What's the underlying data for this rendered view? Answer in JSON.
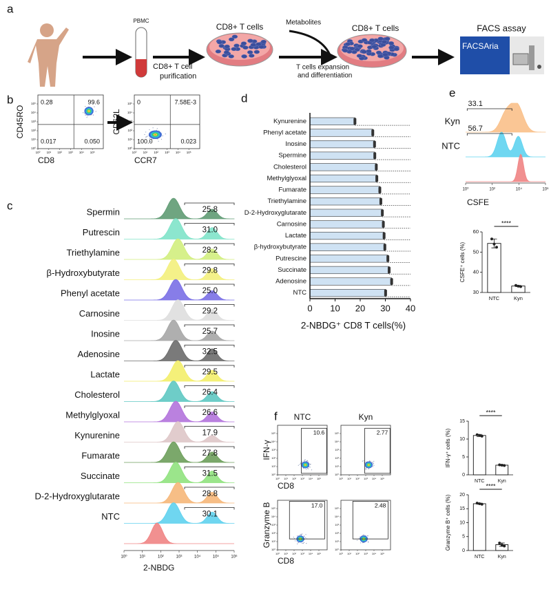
{
  "panel_labels": [
    "a",
    "b",
    "c",
    "d",
    "e",
    "f"
  ],
  "workflow": {
    "pbmc": "PBMC",
    "purification": [
      "CD8+ T cell",
      "purification"
    ],
    "cells_before": "CD8+ T cells",
    "metabolites": "Metabolites",
    "expansion": [
      "T cells expansion",
      "and differentiation"
    ],
    "cells_after": "CD8+ T cells",
    "assay": "FACS assay",
    "machine": "FACSAria"
  },
  "chart_data": [
    {
      "type": "flow-quadrant",
      "xlabel": "CD8",
      "ylabel": "CD45RO",
      "values": [
        0.28,
        99.6,
        0.017,
        0.05
      ],
      "value_labels": [
        "0.28",
        "99.6",
        "0.017",
        "0.050"
      ],
      "log": true,
      "xlim": [
        1,
        1000000
      ],
      "ylim": [
        1,
        1000000
      ],
      "xticks": [
        {
          "value": 1,
          "label": "10⁰"
        },
        {
          "value": 10,
          "label": "10¹"
        },
        {
          "value": 100,
          "label": "10²"
        },
        {
          "value": 1000,
          "label": "10³"
        },
        {
          "value": 10000,
          "label": "10⁴"
        },
        {
          "value": 100000,
          "label": "10⁵"
        }
      ],
      "yticks": [
        {
          "value": 1,
          "label": "10⁰"
        },
        {
          "value": 10,
          "label": "10¹"
        },
        {
          "value": 100,
          "label": "10²"
        },
        {
          "value": 1000,
          "label": "10³"
        },
        {
          "value": 10000,
          "label": "10⁴"
        },
        {
          "value": 100000,
          "label": "10⁵"
        }
      ]
    },
    {
      "type": "flow-quadrant",
      "xlabel": "CCR7",
      "ylabel": "CD62L",
      "values": [
        0,
        0.00758,
        100,
        0.023
      ],
      "value_labels": [
        "0",
        "7.58E-3",
        "100.0",
        "0.023"
      ],
      "log": true,
      "xlim": [
        1,
        1000000
      ],
      "ylim": [
        1,
        1000000
      ],
      "xticks": [
        {
          "value": 1,
          "label": "10⁰"
        },
        {
          "value": 10,
          "label": "10¹"
        },
        {
          "value": 100,
          "label": "10²"
        },
        {
          "value": 1000,
          "label": "10³"
        },
        {
          "value": 10000,
          "label": "10⁴"
        },
        {
          "value": 100000,
          "label": "10⁵"
        }
      ],
      "yticks": [
        {
          "value": 1,
          "label": "10⁰"
        },
        {
          "value": 10,
          "label": "10¹"
        },
        {
          "value": 100,
          "label": "10²"
        },
        {
          "value": 1000,
          "label": "10³"
        },
        {
          "value": 10000,
          "label": "10⁴"
        },
        {
          "value": 100000,
          "label": "10⁵"
        }
      ]
    },
    {
      "type": "ridgeline",
      "xlabel": "2-NBDG",
      "log": true,
      "xlim": [
        1,
        1000000
      ],
      "categories": [
        "Spermin",
        "Putrescin",
        "Triethylamine",
        "β-Hydroxybutyrate",
        "Phenyl acetate",
        "Carnosine",
        "Inosine",
        "Adenosine",
        "Lactate",
        "Cholesterol",
        "Methylglyoxal",
        "Kynurenine",
        "Fumarate",
        "Succinate",
        "D-2-Hydroxyglutarate",
        "NTC",
        null
      ],
      "values": [
        25.8,
        31,
        28.2,
        29.8,
        25,
        29.2,
        25.7,
        32.5,
        29.5,
        26.4,
        26.6,
        17.9,
        27.8,
        31.5,
        28.8,
        30.1,
        null
      ],
      "value_labels": [
        "25.8",
        "31.0",
        "28.2",
        "29.8",
        "25.0",
        "29.2",
        "25.7",
        "32.5",
        "29.5",
        "26.4",
        "26.6",
        "17.9",
        "27.8",
        "31.5",
        "28.8",
        "30.1",
        null
      ],
      "colors": [
        "#5f9b73",
        "#7fe3c9",
        "#d2ee7e",
        "#f3f07c",
        "#7a6fe6",
        "#dedede",
        "#a6a6a6",
        "#6b6b6b",
        "#f3ee6a",
        "#5ec8c2",
        "#b373dc",
        "#dec6c8",
        "#6d9f5b",
        "#90e27e",
        "#f6b779",
        "#5fd1ee",
        "#f08484"
      ],
      "xticks": [
        {
          "value": 1,
          "label": "10⁰"
        },
        {
          "value": 10,
          "label": "10¹"
        },
        {
          "value": 100,
          "label": "10²"
        },
        {
          "value": 1000,
          "label": "10³"
        },
        {
          "value": 10000,
          "label": "10⁴"
        },
        {
          "value": 100000,
          "label": "10⁵"
        },
        {
          "value": 1000000,
          "label": "10⁶"
        }
      ]
    },
    {
      "type": "hbar",
      "xlabel": "2-NBDG⁺ CD8  T cells(%)",
      "color": "#cfe2f3",
      "categories": [
        "Kynurenine",
        "Phenyl acetate",
        "Inosine",
        "Spermine",
        "Cholesterol",
        "Methylglyoxal",
        "Fumarate",
        "Triethylamine",
        "D-2-Hydroxyglutarate",
        "Carnosine",
        "Lactate",
        "β-hydroxybutyrate",
        "Putrescine",
        "Succinate",
        "Adenosine",
        "NTC"
      ],
      "values": [
        17.9,
        25,
        25.7,
        25.8,
        26.4,
        26.6,
        27.8,
        28.2,
        28.8,
        29.2,
        29.5,
        29.8,
        31,
        31.5,
        32.5,
        30.1
      ],
      "xlim": [
        0,
        40
      ],
      "xticks": [
        0,
        10,
        20,
        30,
        40
      ]
    },
    {
      "type": "ridgeline",
      "xlabel": "CSFE",
      "log": true,
      "xlim": [
        1,
        1000000
      ],
      "categories": [
        "Kyn",
        "NTC",
        null
      ],
      "values": [
        33.1,
        56.7,
        null
      ],
      "value_labels": [
        "33.1",
        "56.7",
        null
      ],
      "colors": [
        "#f9c089",
        "#5fd3f0",
        "#f08484"
      ],
      "xticks": [
        {
          "value": 1,
          "label": "10⁰"
        },
        {
          "value": 100,
          "label": "10²"
        },
        {
          "value": 10000,
          "label": "10⁴"
        },
        {
          "value": 1000000,
          "label": "10⁶"
        }
      ]
    },
    {
      "type": "dotbar",
      "ylabel": "CSFE⁺ cells (%)",
      "categories": [
        "NTC",
        "Kyn"
      ],
      "values": [
        54.3,
        33.2
      ],
      "errors": [
        2.2,
        0.3
      ],
      "points": [
        [
          56.5,
          54.0,
          52.4
        ],
        [
          33.5,
          33.1,
          32.9
        ]
      ],
      "significance": "****",
      "ylim": [
        30,
        60
      ],
      "yticks": [
        30,
        40,
        50,
        60
      ]
    },
    {
      "type": "flow-gate",
      "columns": [
        "NTC",
        "Kyn"
      ],
      "rows": [
        "IFN-γ",
        "Granzyme B"
      ],
      "xlabel": "CD8",
      "values": [
        [
          10.6,
          2.77
        ],
        [
          17.0,
          2.48
        ]
      ],
      "value_labels": [
        [
          "10.6",
          "2.77"
        ],
        [
          "17.0",
          "2.48"
        ]
      ],
      "log": true,
      "xlim": [
        1,
        1000000
      ],
      "ylim": [
        1,
        1000000
      ],
      "xticks": [
        {
          "value": 1,
          "label": "10⁰"
        },
        {
          "value": 10,
          "label": "10¹"
        },
        {
          "value": 100,
          "label": "10²"
        },
        {
          "value": 1000,
          "label": "10³"
        },
        {
          "value": 10000,
          "label": "10⁴"
        },
        {
          "value": 100000,
          "label": "10⁵"
        }
      ],
      "yticks": [
        {
          "value": 1,
          "label": "10⁰"
        },
        {
          "value": 10,
          "label": "10¹"
        },
        {
          "value": 100,
          "label": "10²"
        },
        {
          "value": 1000,
          "label": "10³"
        },
        {
          "value": 10000,
          "label": "10⁴"
        },
        {
          "value": 100000,
          "label": "10⁵"
        }
      ]
    },
    {
      "type": "dotbar",
      "ylabel": "IFN-γ⁺ cells (%)",
      "categories": [
        "NTC",
        "Kyn"
      ],
      "values": [
        11.0,
        2.7
      ],
      "errors": [
        0.3,
        0.15
      ],
      "points": [
        [
          11.2,
          11.0,
          10.8
        ],
        [
          2.8,
          2.7,
          2.6
        ]
      ],
      "significance": "****",
      "ylim": [
        0,
        15
      ],
      "yticks": [
        0,
        5,
        10,
        15
      ]
    },
    {
      "type": "dotbar",
      "ylabel": "Granzyme B⁺ cells (%)",
      "categories": [
        "NTC",
        "Kyn"
      ],
      "values": [
        16.8,
        2.1
      ],
      "errors": [
        0.2,
        0.6
      ],
      "points": [
        [
          17.0,
          16.8,
          16.6
        ],
        [
          2.7,
          2.0,
          1.6
        ]
      ],
      "significance": "****",
      "ylim": [
        0,
        20
      ],
      "yticks": [
        0,
        5,
        10,
        15,
        20
      ]
    }
  ]
}
